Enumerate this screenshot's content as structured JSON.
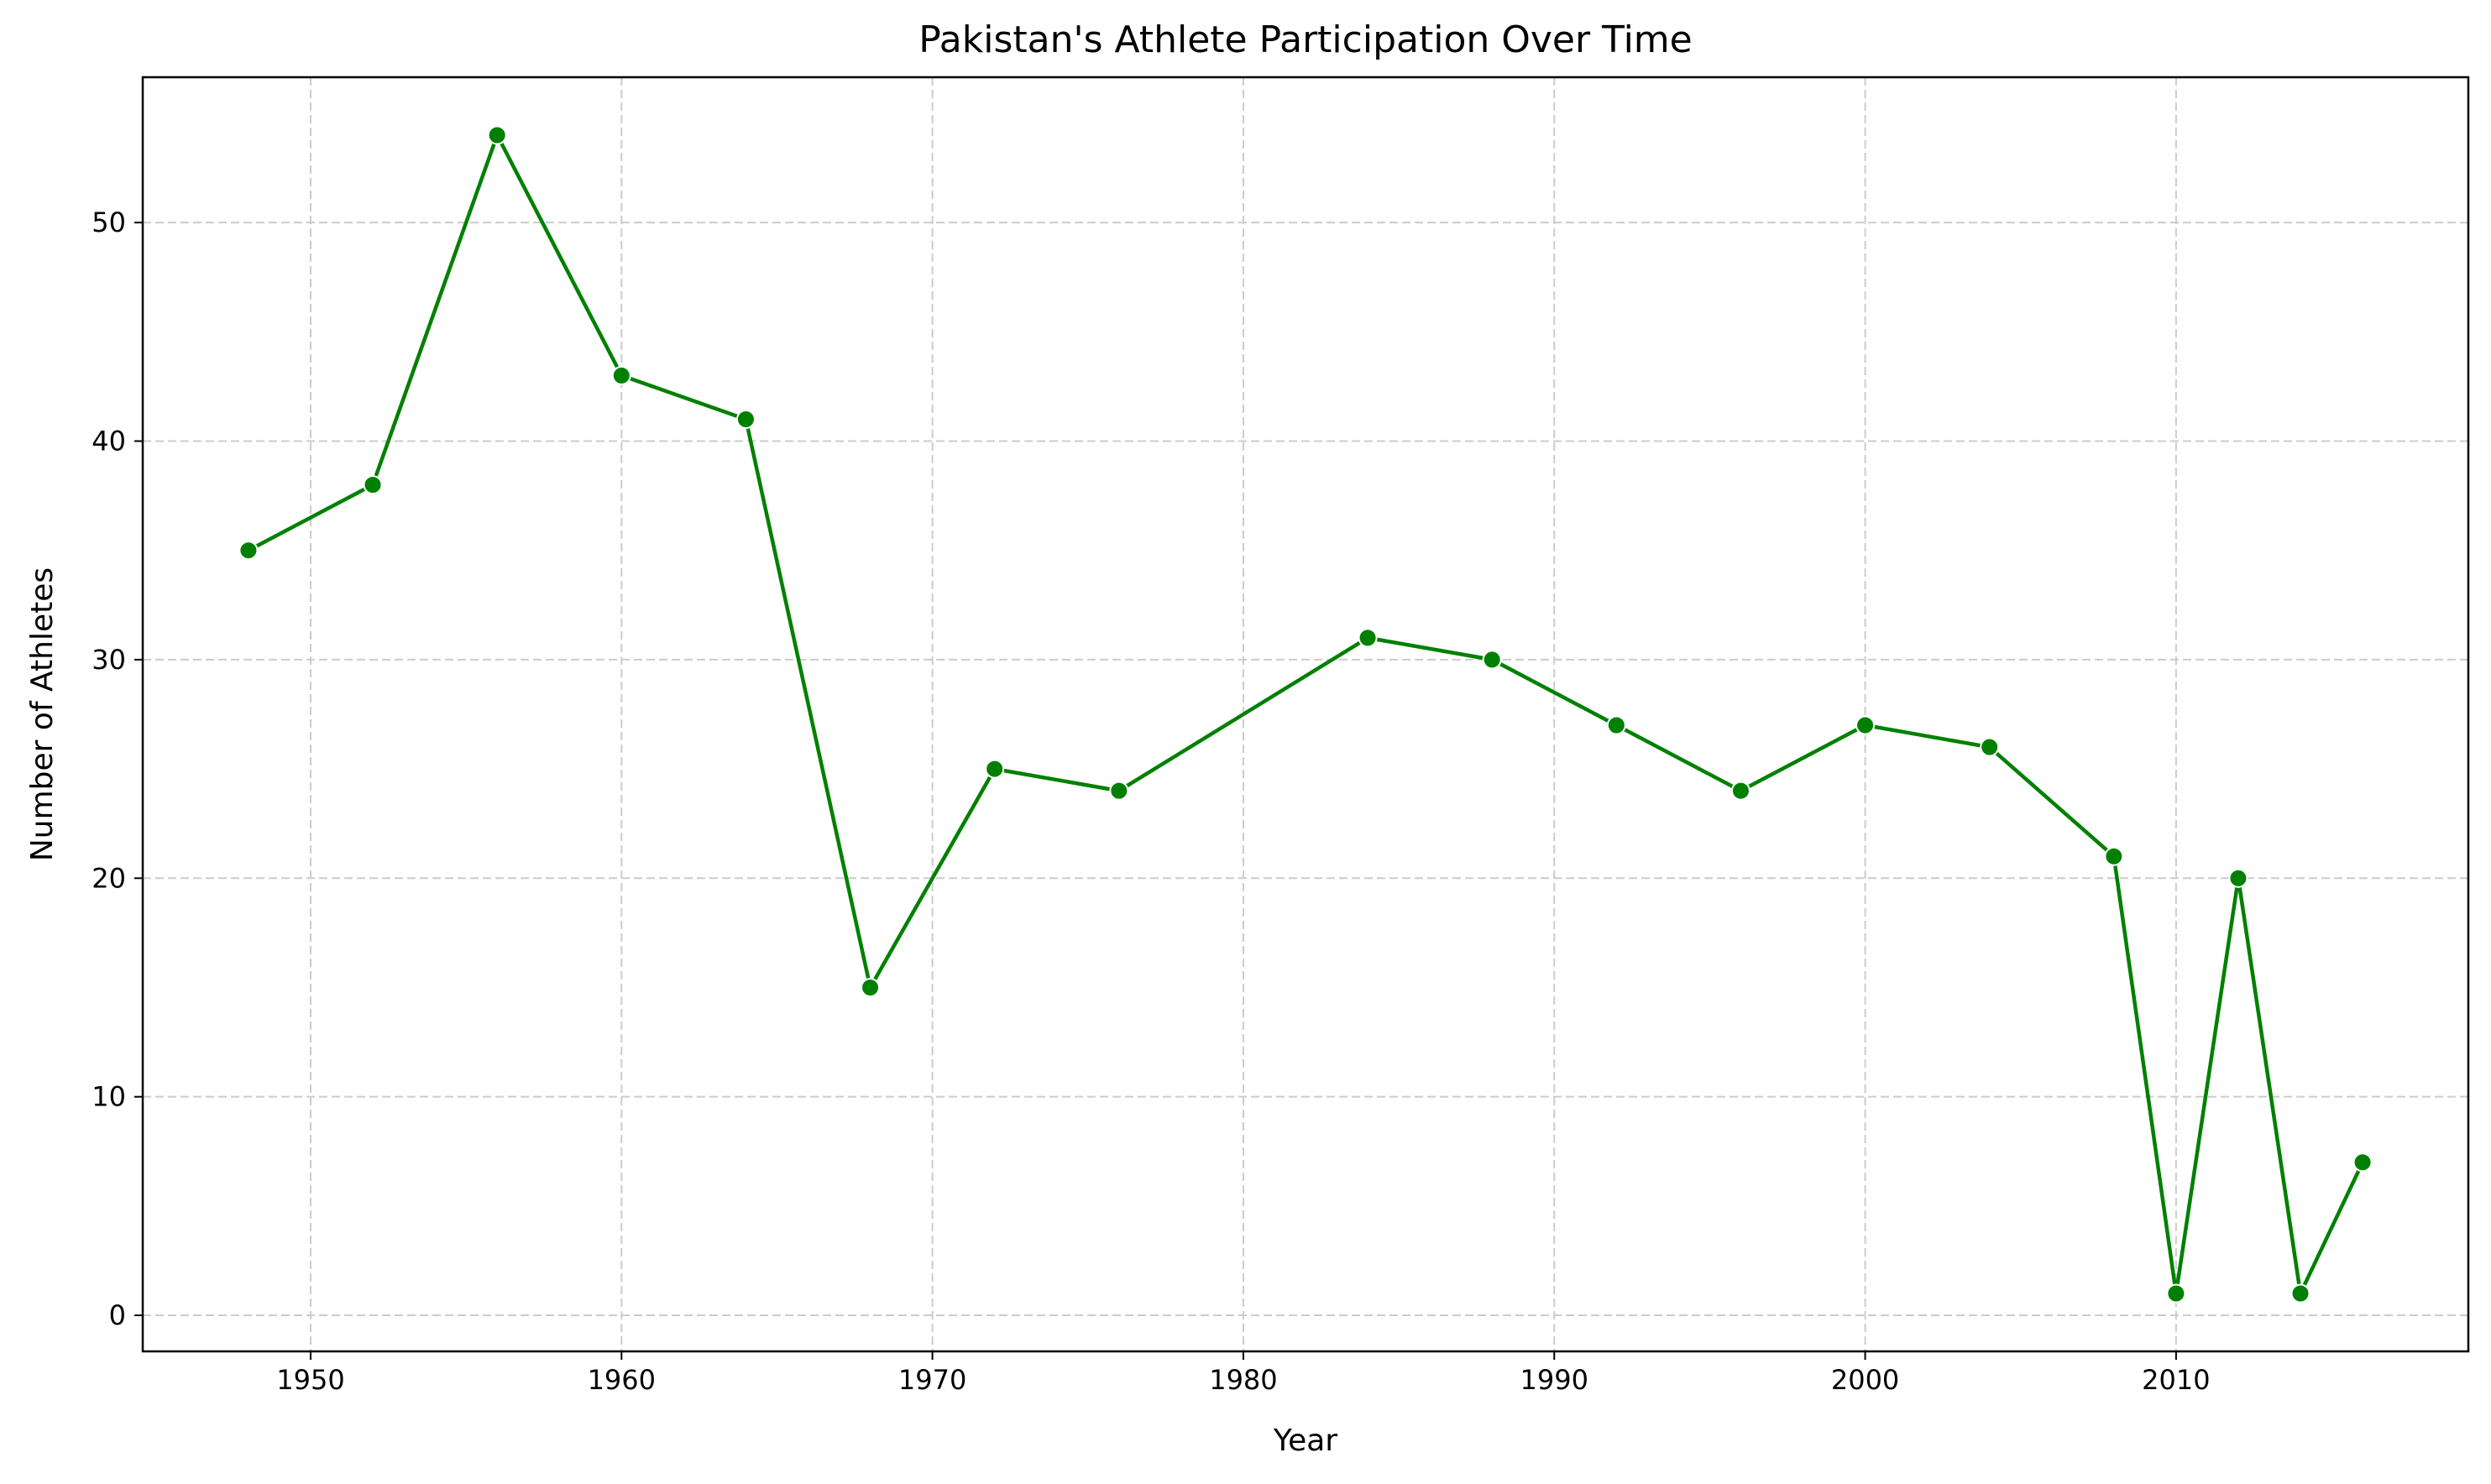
{
  "chart_data": {
    "type": "line",
    "title": "Pakistan's Athlete Participation Over Time",
    "xlabel": "Year",
    "ylabel": "Number of Athletes",
    "xlim": [
      1944.6,
      2019.4
    ],
    "ylim": [
      -1.65,
      56.65
    ],
    "xticks": [
      1950,
      1960,
      1970,
      1980,
      1990,
      2000,
      2010
    ],
    "yticks": [
      0,
      10,
      20,
      30,
      40,
      50
    ],
    "grid": true,
    "grid_style": "dashed",
    "line_color": "#008000",
    "marker": "circle",
    "series": [
      {
        "x": [
          1948,
          1952,
          1956,
          1960,
          1964,
          1968,
          1972,
          1976,
          1984,
          1988,
          1992,
          1996,
          2000,
          2004,
          2008,
          2010,
          2012,
          2014,
          2016
        ],
        "y": [
          35,
          38,
          54,
          43,
          41,
          15,
          25,
          24,
          31,
          30,
          27,
          24,
          27,
          26,
          21,
          1,
          20,
          1,
          7
        ]
      }
    ]
  }
}
